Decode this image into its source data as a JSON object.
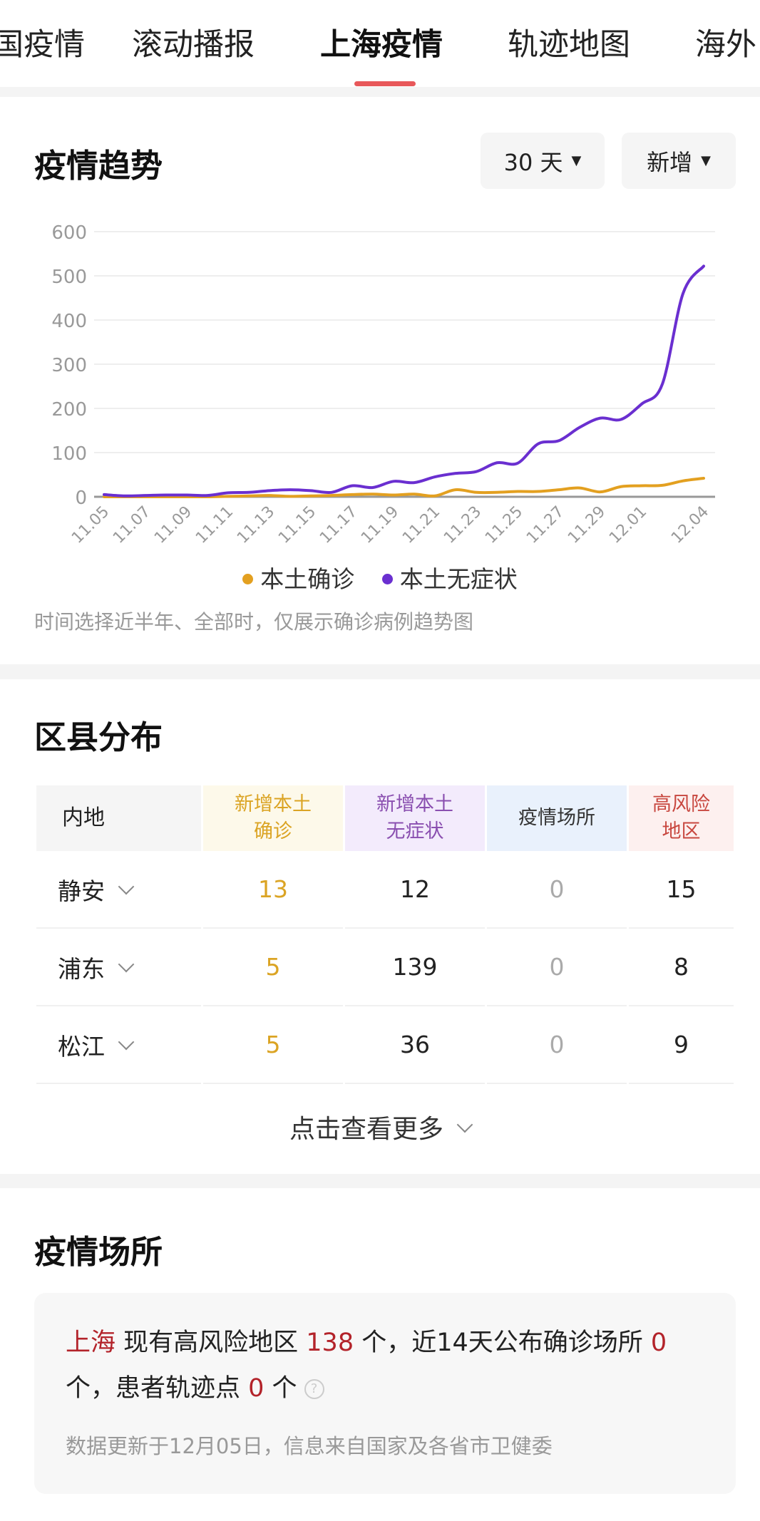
{
  "tabs": [
    "国疫情",
    "滚动播报",
    "上海疫情",
    "轨迹地图",
    "海外"
  ],
  "trend": {
    "title": "疫情趋势",
    "range": "30 天",
    "mode": "新增",
    "note": "时间选择近半年、全部时，仅展示确诊病例趋势图"
  },
  "chart_data": {
    "type": "line",
    "x": [
      "11.05",
      "11.06",
      "11.07",
      "11.08",
      "11.09",
      "11.10",
      "11.11",
      "11.12",
      "11.13",
      "11.14",
      "11.15",
      "11.16",
      "11.17",
      "11.18",
      "11.19",
      "11.20",
      "11.21",
      "11.22",
      "11.23",
      "11.24",
      "11.25",
      "11.26",
      "11.27",
      "11.28",
      "11.29",
      "11.30",
      "12.01",
      "12.02",
      "12.03",
      "12.04"
    ],
    "xticks": [
      "11.05",
      "11.07",
      "11.09",
      "11.11",
      "11.13",
      "11.15",
      "11.17",
      "11.19",
      "11.21",
      "11.23",
      "11.25",
      "11.27",
      "11.29",
      "12.01",
      "12.04"
    ],
    "yticks": [
      0,
      100,
      200,
      300,
      400,
      500,
      600
    ],
    "ylim": [
      0,
      600
    ],
    "series": [
      {
        "name": "本土确诊",
        "color": "#e3a020",
        "values": [
          0,
          0,
          0,
          0,
          0,
          0,
          1,
          2,
          3,
          1,
          2,
          3,
          5,
          6,
          4,
          6,
          2,
          16,
          10,
          10,
          12,
          12,
          16,
          20,
          11,
          23,
          25,
          26,
          36,
          42
        ]
      },
      {
        "name": "本土无症状",
        "color": "#6a2fd0",
        "values": [
          5,
          2,
          3,
          4,
          4,
          3,
          9,
          10,
          14,
          16,
          14,
          10,
          25,
          21,
          35,
          32,
          45,
          53,
          57,
          77,
          76,
          120,
          127,
          157,
          178,
          175,
          210,
          255,
          460,
          522
        ]
      }
    ],
    "legend": "bottom",
    "grid": true
  },
  "district": {
    "title": "区县分布",
    "headers": [
      "内地",
      "新增本土\n确诊",
      "新增本土\n无症状",
      "疫情场所",
      "高风险\n地区"
    ],
    "rows": [
      [
        "静安",
        "13",
        "12",
        "0",
        "15"
      ],
      [
        "浦东",
        "5",
        "139",
        "0",
        "8"
      ],
      [
        "松江",
        "5",
        "36",
        "0",
        "9"
      ]
    ],
    "more": "点击查看更多"
  },
  "places": {
    "title": "疫情场所",
    "city": "上海",
    "t1": " 现有高风险地区 ",
    "high": "138",
    "t2": " 个，近14天公布确诊场所 ",
    "sites": "0",
    "t3": " 个，患者轨迹点 ",
    "points": "0",
    "t4": " 个",
    "help": "?",
    "updated": "数据更新于12月05日，信息来自国家及各省市卫健委"
  }
}
